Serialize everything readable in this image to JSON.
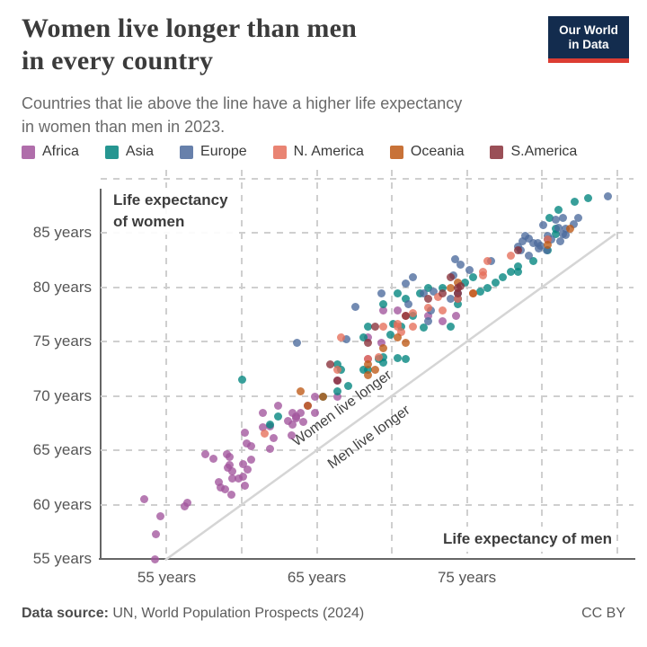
{
  "header": {
    "title_lines": [
      "Women live longer than men",
      "in every country"
    ],
    "subtitle_lines": [
      "Countries that lie above the line have a higher life expectancy",
      "in women than men in 2023."
    ],
    "logo": {
      "line1": "Our World",
      "line2": "in Data",
      "bg_color": "#132c4e",
      "accent_color": "#dc3d33"
    }
  },
  "footer": {
    "source_label": "Data source:",
    "source_text": " UN, World Population Prospects (2024)",
    "license": "CC BY"
  },
  "chart_data": {
    "type": "scatter",
    "xlabel": "Life expectancy of men",
    "ylabel_lines": [
      "Life expectancy",
      "of women"
    ],
    "xlim": [
      50.6,
      86.1
    ],
    "ylim": [
      55,
      90.8
    ],
    "x_ticks": [
      {
        "v": 55,
        "label": "55 years"
      },
      {
        "v": 65,
        "label": "65 years"
      },
      {
        "v": 75,
        "label": "75 years"
      }
    ],
    "y_ticks": [
      {
        "v": 55,
        "label": "55 years"
      },
      {
        "v": 60,
        "label": "60 years"
      },
      {
        "v": 65,
        "label": "65 years"
      },
      {
        "v": 70,
        "label": "70 years"
      },
      {
        "v": 75,
        "label": "75 years"
      },
      {
        "v": 80,
        "label": "80 years"
      },
      {
        "v": 85,
        "label": "85 years"
      }
    ],
    "x_grid": [
      55,
      60,
      65,
      70,
      75,
      80,
      85
    ],
    "y_grid": [
      60,
      65,
      70,
      75,
      80,
      85,
      90
    ],
    "grid": true,
    "legend_position": "top",
    "reference_line": {
      "equation": "y = x",
      "from": 54.9,
      "to": 84.9,
      "color": "#d5d5d5"
    },
    "annotations": [
      {
        "text": "Women live longer",
        "x": 66.7,
        "y": 68.8,
        "angle": -36
      },
      {
        "text": "Men live longer",
        "x": 68.5,
        "y": 66.2,
        "angle": -36
      }
    ],
    "point_style": {
      "radius": 4.5,
      "opacity": 0.78
    },
    "series": [
      {
        "name": "Africa",
        "color": "#A2559C",
        "points": [
          [
            54.2,
            55.0
          ],
          [
            53.5,
            60.5
          ],
          [
            54.3,
            57.3
          ],
          [
            54.6,
            58.9
          ],
          [
            56.4,
            60.2
          ],
          [
            56.2,
            59.8
          ],
          [
            58.6,
            61.6
          ],
          [
            58.9,
            61.4
          ],
          [
            59.4,
            62.4
          ],
          [
            60.2,
            61.7
          ],
          [
            59.3,
            60.9
          ],
          [
            58.5,
            62.1
          ],
          [
            59.1,
            63.4
          ],
          [
            59.8,
            62.4
          ],
          [
            60.1,
            62.6
          ],
          [
            59.4,
            63.1
          ],
          [
            60.6,
            64.1
          ],
          [
            60.4,
            63.2
          ],
          [
            59.2,
            63.6
          ],
          [
            59.0,
            64.6
          ],
          [
            57.6,
            64.6
          ],
          [
            58.1,
            64.2
          ],
          [
            60.1,
            63.7
          ],
          [
            59.2,
            64.4
          ],
          [
            61.9,
            65.1
          ],
          [
            62.1,
            66.1
          ],
          [
            60.3,
            65.6
          ],
          [
            61.4,
            67.1
          ],
          [
            61.9,
            67.2
          ],
          [
            60.6,
            65.4
          ],
          [
            63.4,
            68.4
          ],
          [
            63.6,
            67.9
          ],
          [
            63.1,
            67.7
          ],
          [
            63.9,
            68.4
          ],
          [
            63.4,
            67.4
          ],
          [
            63.3,
            66.4
          ],
          [
            64.1,
            67.6
          ],
          [
            64.9,
            68.4
          ],
          [
            64.9,
            69.9
          ],
          [
            63.6,
            68.1
          ],
          [
            64.4,
            69.1
          ],
          [
            62.4,
            69.1
          ],
          [
            61.4,
            68.4
          ],
          [
            60.2,
            66.6
          ],
          [
            66.4,
            69.9
          ],
          [
            68.4,
            73.4
          ],
          [
            69.3,
            74.9
          ],
          [
            72.4,
            77.4
          ],
          [
            74.3,
            77.4
          ],
          [
            73.4,
            76.9
          ],
          [
            70.4,
            77.9
          ],
          [
            66.4,
            71.4
          ],
          [
            68.4,
            75.4
          ],
          [
            69.4,
            77.9
          ]
        ]
      },
      {
        "name": "Asia",
        "color": "#00847E",
        "points": [
          [
            62.4,
            68.1
          ],
          [
            60.0,
            71.5
          ],
          [
            65.4,
            69.9
          ],
          [
            61.9,
            67.4
          ],
          [
            66.4,
            70.4
          ],
          [
            70.4,
            73.5
          ],
          [
            68.4,
            72.4
          ],
          [
            72.1,
            76.3
          ],
          [
            70.9,
            73.4
          ],
          [
            68.1,
            72.4
          ],
          [
            67.1,
            70.9
          ],
          [
            66.6,
            72.4
          ],
          [
            69.4,
            73.1
          ],
          [
            68.4,
            76.4
          ],
          [
            70.1,
            76.6
          ],
          [
            70.9,
            78.9
          ],
          [
            68.1,
            75.4
          ],
          [
            69.4,
            73.6
          ],
          [
            66.4,
            72.9
          ],
          [
            69.9,
            75.6
          ],
          [
            71.4,
            77.4
          ],
          [
            69.4,
            78.4
          ],
          [
            71.9,
            79.4
          ],
          [
            69.1,
            73.4
          ],
          [
            70.6,
            76.4
          ],
          [
            75.9,
            79.6
          ],
          [
            76.4,
            79.9
          ],
          [
            76.9,
            80.4
          ],
          [
            74.4,
            78.4
          ],
          [
            74.9,
            80.4
          ],
          [
            80.9,
            84.9
          ],
          [
            78.4,
            81.4
          ],
          [
            80.4,
            83.4
          ],
          [
            78.4,
            81.9
          ],
          [
            77.9,
            81.4
          ],
          [
            77.4,
            80.9
          ],
          [
            75.4,
            80.9
          ],
          [
            70.4,
            79.4
          ],
          [
            72.4,
            79.9
          ],
          [
            73.4,
            79.9
          ],
          [
            74.4,
            78.9
          ],
          [
            79.4,
            82.4
          ],
          [
            73.9,
            76.4
          ],
          [
            80.9,
            85.4
          ],
          [
            81.1,
            87.1
          ],
          [
            80.5,
            86.4
          ],
          [
            82.2,
            87.9
          ],
          [
            83.1,
            88.2
          ]
        ]
      },
      {
        "name": "Europe",
        "color": "#4C6A9C",
        "points": [
          [
            63.7,
            74.9
          ],
          [
            67.6,
            78.2
          ],
          [
            70.9,
            80.3
          ],
          [
            71.4,
            80.9
          ],
          [
            67.0,
            75.2
          ],
          [
            69.3,
            79.4
          ],
          [
            74.2,
            82.6
          ],
          [
            74.6,
            82.1
          ],
          [
            72.8,
            79.6
          ],
          [
            72.1,
            79.4
          ],
          [
            71.1,
            78.4
          ],
          [
            72.6,
            77.9
          ],
          [
            75.2,
            81.6
          ],
          [
            74.1,
            81.1
          ],
          [
            76.6,
            82.4
          ],
          [
            78.7,
            84.2
          ],
          [
            79.4,
            84.1
          ],
          [
            78.6,
            83.4
          ],
          [
            82.1,
            85.8
          ],
          [
            80.1,
            85.7
          ],
          [
            81.1,
            85.5
          ],
          [
            80.9,
            86.2
          ],
          [
            78.9,
            84.7
          ],
          [
            79.7,
            84.1
          ],
          [
            80.3,
            83.4
          ],
          [
            80.4,
            84.7
          ],
          [
            79.1,
            82.9
          ],
          [
            80.6,
            84.4
          ],
          [
            81.2,
            84.2
          ],
          [
            81.6,
            84.8
          ],
          [
            81.4,
            84.9
          ],
          [
            79.8,
            83.6
          ],
          [
            79.1,
            84.5
          ],
          [
            78.4,
            83.7
          ],
          [
            80.4,
            84.4
          ],
          [
            79.9,
            83.8
          ],
          [
            74.4,
            78.9
          ],
          [
            72.4,
            76.9
          ],
          [
            74.4,
            79.4
          ],
          [
            73.9,
            78.9
          ],
          [
            82.4,
            86.4
          ],
          [
            84.4,
            88.4
          ],
          [
            81.4,
            86.4
          ],
          [
            81.6,
            85.4
          ]
        ]
      },
      {
        "name": "N. America",
        "color": "#E56E5A",
        "points": [
          [
            61.5,
            66.5
          ],
          [
            68.4,
            73.4
          ],
          [
            66.4,
            72.4
          ],
          [
            70.4,
            76.4
          ],
          [
            66.6,
            75.4
          ],
          [
            70.9,
            77.4
          ],
          [
            70.4,
            76.6
          ],
          [
            69.1,
            73.6
          ],
          [
            69.4,
            76.4
          ],
          [
            71.4,
            77.6
          ],
          [
            74.4,
            78.9
          ],
          [
            71.4,
            76.4
          ],
          [
            70.6,
            75.9
          ],
          [
            73.4,
            77.9
          ],
          [
            75.4,
            79.4
          ],
          [
            76.1,
            81.4
          ],
          [
            72.4,
            78.1
          ],
          [
            76.1,
            81.1
          ],
          [
            80.4,
            84.4
          ],
          [
            77.9,
            82.9
          ],
          [
            76.4,
            82.4
          ],
          [
            73.1,
            79.1
          ]
        ]
      },
      {
        "name": "Oceania",
        "color": "#BE5915",
        "points": [
          [
            64.4,
            69.1
          ],
          [
            63.9,
            70.4
          ],
          [
            68.9,
            72.4
          ],
          [
            68.4,
            71.9
          ],
          [
            65.4,
            69.9
          ],
          [
            68.4,
            72.9
          ],
          [
            70.4,
            75.4
          ],
          [
            69.4,
            74.4
          ],
          [
            81.9,
            85.4
          ],
          [
            80.4,
            83.9
          ],
          [
            75.4,
            79.4
          ],
          [
            74.4,
            80.4
          ],
          [
            73.9,
            79.9
          ],
          [
            70.9,
            74.9
          ]
        ]
      },
      {
        "name": "S.America",
        "color": "#883039",
        "points": [
          [
            66.4,
            71.4
          ],
          [
            68.9,
            76.4
          ],
          [
            65.9,
            72.9
          ],
          [
            68.4,
            74.9
          ],
          [
            70.9,
            77.4
          ],
          [
            72.4,
            78.9
          ],
          [
            74.4,
            79.9
          ],
          [
            74.6,
            80.1
          ],
          [
            74.4,
            79.4
          ],
          [
            73.4,
            79.4
          ],
          [
            73.9,
            80.9
          ],
          [
            78.4,
            83.4
          ]
        ]
      }
    ]
  }
}
